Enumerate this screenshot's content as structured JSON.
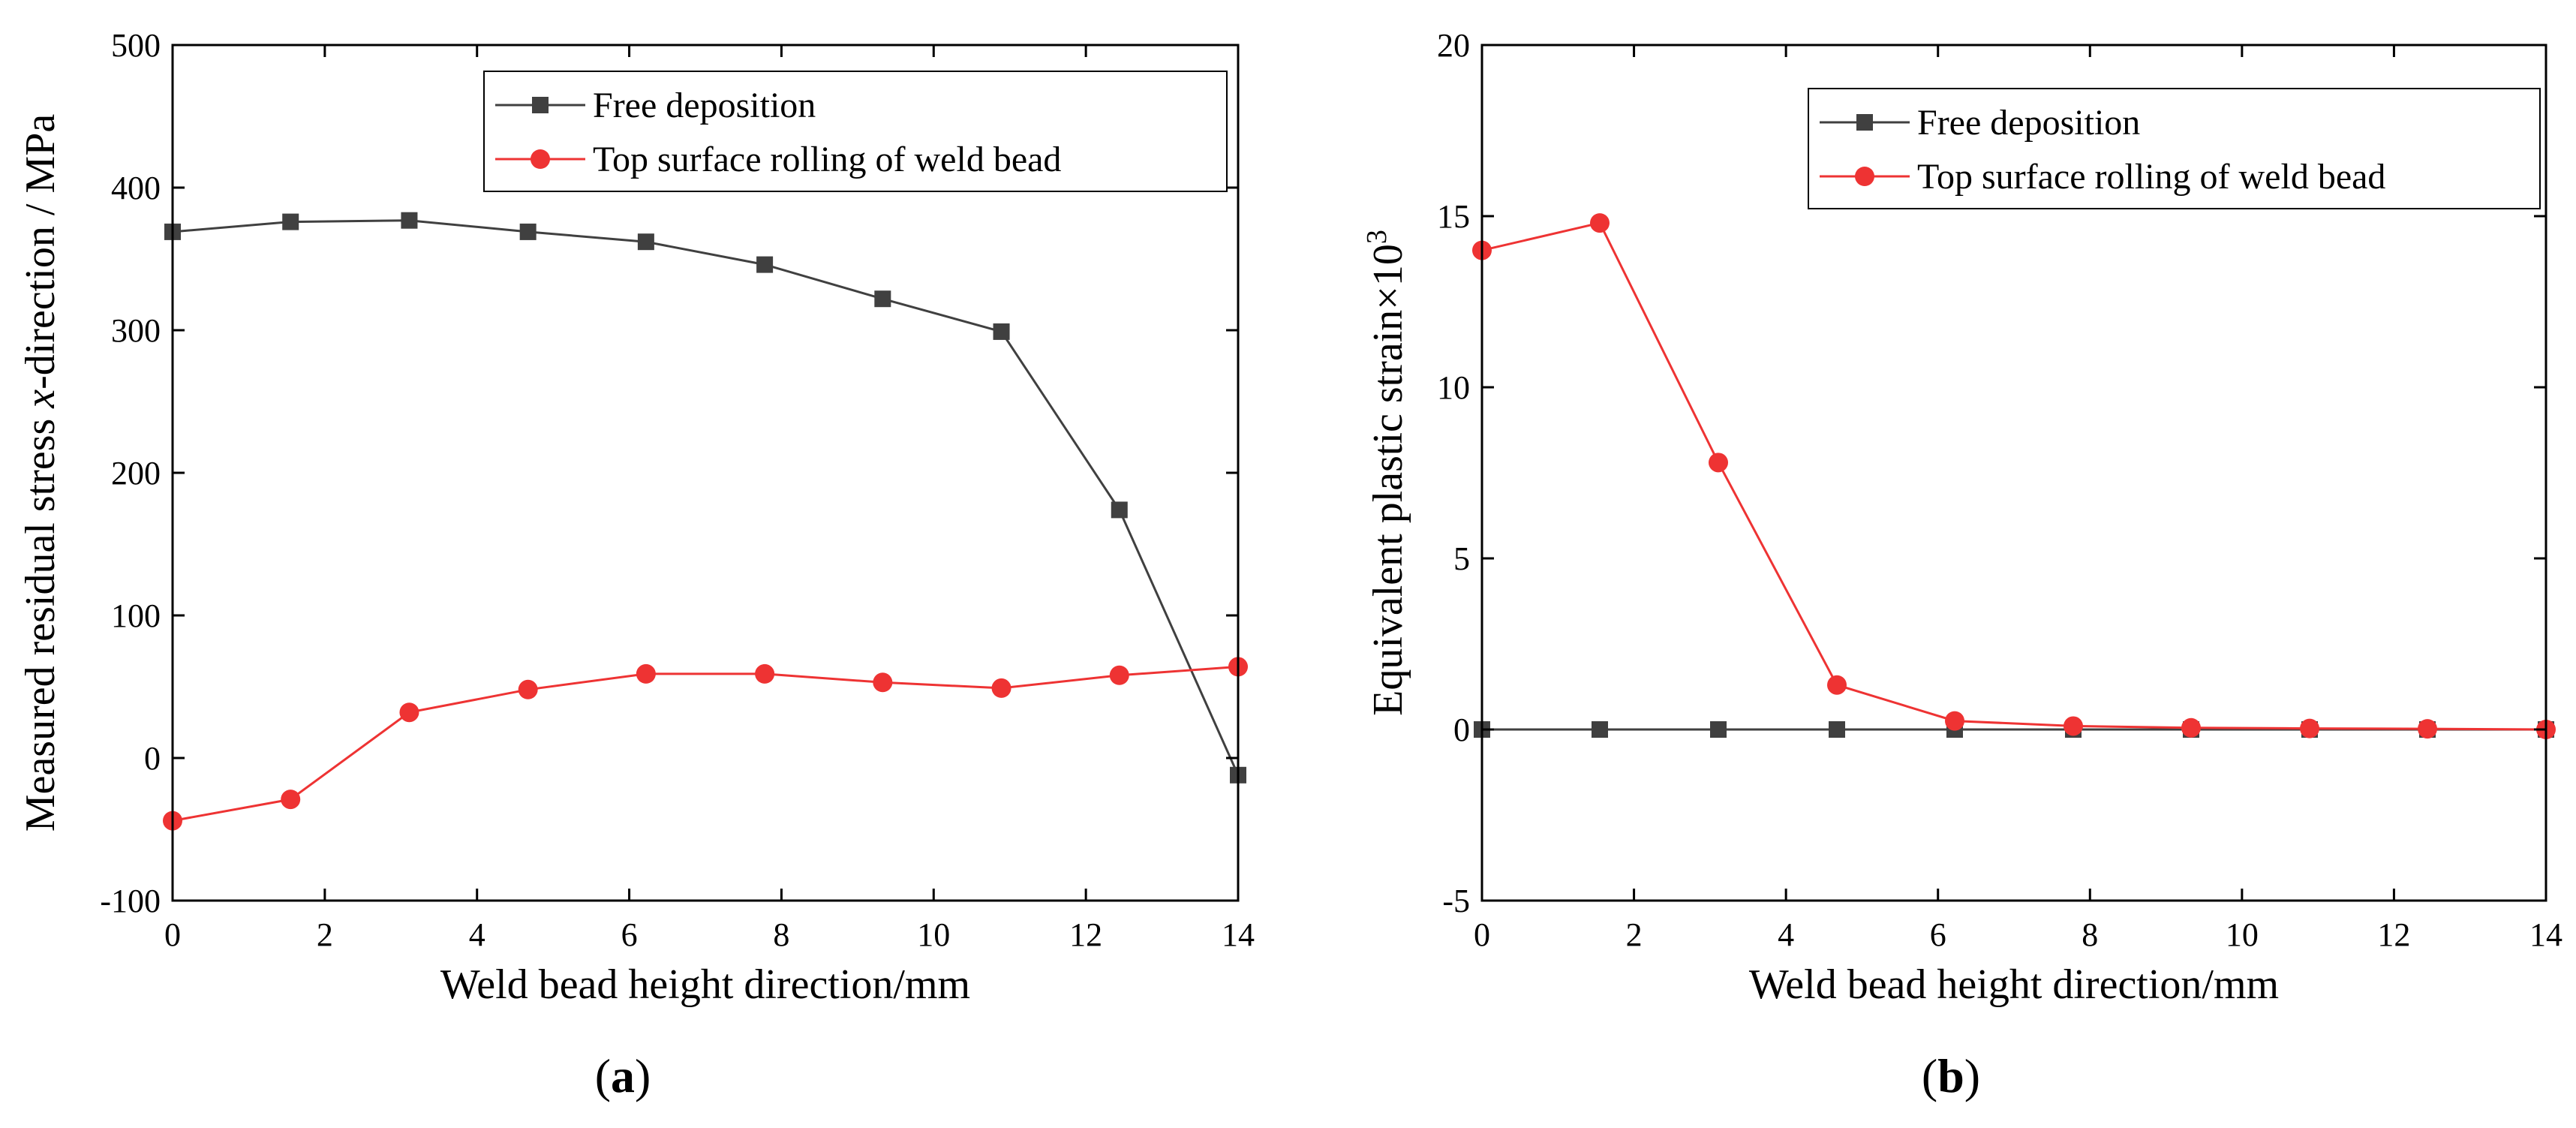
{
  "colors": {
    "free_deposition": "#404040",
    "rolling": "#ee3333"
  },
  "chart_data": [
    {
      "type": "line",
      "panel": "(a)",
      "panel_letter": "a",
      "xlabel": "Weld bead height direction/mm",
      "ylabel_parts": [
        "Measured residual stress  ",
        "x",
        "-direction / MPa"
      ],
      "xlim": [
        0,
        14
      ],
      "ylim": [
        -100,
        500
      ],
      "xticks": [
        0,
        2,
        4,
        6,
        8,
        10,
        12,
        14
      ],
      "yticks": [
        -100,
        0,
        100,
        200,
        300,
        400,
        500
      ],
      "legend_position": "top-right",
      "series": [
        {
          "name": "Free deposition",
          "marker": "square",
          "x": [
            0,
            1.55,
            3.11,
            4.67,
            6.22,
            7.78,
            9.33,
            10.89,
            12.44,
            14
          ],
          "y": [
            369,
            376,
            377,
            369,
            362,
            346,
            322,
            299,
            174,
            -12
          ]
        },
        {
          "name": "Top surface rolling of weld bead",
          "marker": "circle",
          "x": [
            0,
            1.55,
            3.11,
            4.67,
            6.22,
            7.78,
            9.33,
            10.89,
            12.44,
            14
          ],
          "y": [
            -44,
            -29,
            32,
            48,
            59,
            59,
            53,
            49,
            58,
            64
          ]
        }
      ]
    },
    {
      "type": "line",
      "panel": "(b)",
      "panel_letter": "b",
      "xlabel": "Weld bead height direction/mm",
      "ylabel_parts": [
        "Equivalent plastic strain×10",
        "3"
      ],
      "xlim": [
        0,
        14
      ],
      "ylim": [
        -5,
        20
      ],
      "xticks": [
        0,
        2,
        4,
        6,
        8,
        10,
        12,
        14
      ],
      "yticks": [
        -5,
        0,
        5,
        10,
        15,
        20
      ],
      "legend_position": "top-right",
      "series": [
        {
          "name": "Free deposition",
          "marker": "square",
          "x": [
            0,
            1.55,
            3.11,
            4.67,
            6.22,
            7.78,
            9.33,
            10.89,
            12.44,
            14
          ],
          "y": [
            0,
            0,
            0,
            0,
            0,
            0,
            0,
            0,
            0,
            0
          ]
        },
        {
          "name": "Top surface rolling of weld bead",
          "marker": "circle",
          "x": [
            0,
            1.55,
            3.11,
            4.67,
            6.22,
            7.78,
            9.33,
            10.89,
            12.44,
            14
          ],
          "y": [
            14,
            14.8,
            7.8,
            1.3,
            0.25,
            0.1,
            0.05,
            0.03,
            0.02,
            0
          ]
        }
      ]
    }
  ]
}
